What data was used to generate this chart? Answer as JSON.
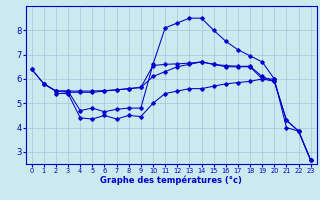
{
  "xlabel": "Graphe des températures (°c)",
  "background_color": "#cce9f0",
  "grid_color": "#aaccdd",
  "line_color": "#0000cc",
  "xlim": [
    -0.5,
    23.5
  ],
  "ylim": [
    2.5,
    9.0
  ],
  "xticks": [
    0,
    1,
    2,
    3,
    4,
    5,
    6,
    7,
    8,
    9,
    10,
    11,
    12,
    13,
    14,
    15,
    16,
    17,
    18,
    19,
    20,
    21,
    22,
    23
  ],
  "yticks": [
    3,
    4,
    5,
    6,
    7,
    8
  ],
  "line1_x": [
    0,
    1,
    2,
    3,
    4,
    5,
    6,
    7,
    8,
    9,
    10,
    11,
    12,
    13,
    14,
    15,
    16,
    17,
    18,
    19,
    20,
    21,
    22,
    23
  ],
  "line1_y": [
    6.4,
    5.8,
    5.5,
    5.45,
    5.45,
    5.45,
    5.5,
    5.55,
    5.6,
    5.65,
    6.1,
    6.3,
    6.5,
    6.6,
    6.7,
    6.6,
    6.5,
    6.5,
    6.5,
    6.0,
    5.9,
    4.3,
    3.85,
    2.65
  ],
  "line2_x": [
    0,
    1,
    2,
    3,
    4,
    5,
    6,
    7,
    8,
    9,
    10,
    11,
    12,
    13,
    14,
    15,
    16,
    17,
    18,
    19,
    20,
    21,
    22,
    23
  ],
  "line2_y": [
    6.4,
    5.8,
    5.5,
    5.5,
    5.5,
    5.5,
    5.52,
    5.55,
    5.6,
    5.65,
    6.55,
    6.6,
    6.62,
    6.65,
    6.7,
    6.6,
    6.55,
    6.52,
    6.52,
    6.1,
    5.9,
    4.3,
    3.85,
    2.65
  ],
  "line3_x": [
    1,
    2,
    3,
    4,
    5,
    6,
    7,
    8,
    9,
    10,
    11,
    12,
    13,
    14,
    15,
    16,
    17,
    18,
    19,
    20,
    21,
    22,
    23
  ],
  "line3_y": [
    5.8,
    5.5,
    5.5,
    4.7,
    4.8,
    4.65,
    4.75,
    4.8,
    4.8,
    6.6,
    8.1,
    8.3,
    8.5,
    8.5,
    8.0,
    7.55,
    7.2,
    6.95,
    6.7,
    6.0,
    4.0,
    3.85,
    2.65
  ],
  "line4_x": [
    2,
    3,
    4,
    5,
    6,
    7,
    8,
    9,
    10,
    11,
    12,
    13,
    14,
    15,
    16,
    17,
    18,
    19,
    20
  ],
  "line4_y": [
    5.4,
    5.4,
    4.4,
    4.35,
    4.5,
    4.35,
    4.5,
    4.45,
    5.0,
    5.4,
    5.5,
    5.6,
    5.6,
    5.7,
    5.8,
    5.85,
    5.9,
    6.0,
    6.0
  ]
}
